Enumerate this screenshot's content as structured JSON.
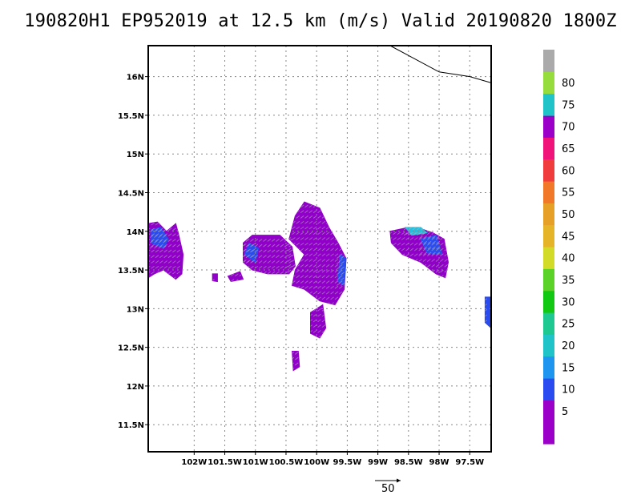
{
  "title": "190820H1 EP952019 at 12.5 km (m/s) Valid 20190820 1800Z",
  "map": {
    "lon_range": [
      -102.75,
      -97.15
    ],
    "lat_range": [
      11.15,
      16.4
    ],
    "lat_ticks": [
      {
        "value": 16.0,
        "label": "16N"
      },
      {
        "value": 15.5,
        "label": "15.5N"
      },
      {
        "value": 15.0,
        "label": "15N"
      },
      {
        "value": 14.5,
        "label": "14.5N"
      },
      {
        "value": 14.0,
        "label": "14N"
      },
      {
        "value": 13.5,
        "label": "13.5N"
      },
      {
        "value": 13.0,
        "label": "13N"
      },
      {
        "value": 12.5,
        "label": "12.5N"
      },
      {
        "value": 12.0,
        "label": "12N"
      },
      {
        "value": 11.5,
        "label": "11.5N"
      }
    ],
    "lon_ticks": [
      {
        "value": -102.0,
        "label": "102W"
      },
      {
        "value": -101.5,
        "label": "101.5W"
      },
      {
        "value": -101.0,
        "label": "101W"
      },
      {
        "value": -100.5,
        "label": "100.5W"
      },
      {
        "value": -100.0,
        "label": "100W"
      },
      {
        "value": -99.5,
        "label": "99.5W"
      },
      {
        "value": -99.0,
        "label": "99W"
      },
      {
        "value": -98.5,
        "label": "98.5W"
      },
      {
        "value": -98.0,
        "label": "98W"
      },
      {
        "value": -97.5,
        "label": "97.5W"
      }
    ],
    "gridlines": "dotted",
    "coastline": [
      [
        -98.8,
        16.4
      ],
      [
        -98.0,
        16.06
      ],
      [
        -97.5,
        16.0
      ],
      [
        -97.15,
        15.92
      ]
    ],
    "echo_regions": [
      {
        "cells": [
          [
            -102.75,
            13.4
          ],
          [
            -102.75,
            14.1
          ],
          [
            -102.6,
            14.12
          ],
          [
            -102.45,
            14.0
          ],
          [
            -102.3,
            14.1
          ],
          [
            -102.25,
            13.95
          ],
          [
            -102.18,
            13.7
          ],
          [
            -102.2,
            13.45
          ],
          [
            -102.3,
            13.38
          ],
          [
            -102.5,
            13.5
          ],
          [
            -102.65,
            13.45
          ]
        ],
        "color": "#9000c8"
      },
      {
        "cells": [
          [
            -102.7,
            13.85
          ],
          [
            -102.7,
            14.02
          ],
          [
            -102.55,
            14.05
          ],
          [
            -102.42,
            13.9
          ],
          [
            -102.5,
            13.78
          ]
        ],
        "color": "#2a4bf0"
      },
      {
        "cells": [
          [
            -101.2,
            13.85
          ],
          [
            -101.05,
            13.95
          ],
          [
            -100.6,
            13.95
          ],
          [
            -100.4,
            13.8
          ],
          [
            -100.35,
            13.55
          ],
          [
            -100.45,
            13.45
          ],
          [
            -100.8,
            13.45
          ],
          [
            -101.05,
            13.5
          ],
          [
            -101.2,
            13.6
          ]
        ],
        "color": "#9000c8"
      },
      {
        "cells": [
          [
            -101.18,
            13.7
          ],
          [
            -101.1,
            13.85
          ],
          [
            -100.95,
            13.78
          ],
          [
            -101.0,
            13.6
          ]
        ],
        "color": "#2a4bf0"
      },
      {
        "cells": [
          [
            -100.35,
            14.2
          ],
          [
            -100.2,
            14.38
          ],
          [
            -99.95,
            14.3
          ],
          [
            -99.8,
            14.05
          ],
          [
            -99.65,
            13.85
          ],
          [
            -99.52,
            13.65
          ],
          [
            -99.55,
            13.25
          ],
          [
            -99.7,
            13.05
          ],
          [
            -99.95,
            13.1
          ],
          [
            -100.2,
            13.25
          ],
          [
            -100.4,
            13.3
          ],
          [
            -100.35,
            13.5
          ],
          [
            -100.2,
            13.7
          ],
          [
            -100.45,
            13.9
          ]
        ],
        "color": "#9000c8"
      },
      {
        "cells": [
          [
            -99.62,
            13.7
          ],
          [
            -99.52,
            13.65
          ],
          [
            -99.55,
            13.3
          ],
          [
            -99.65,
            13.35
          ]
        ],
        "color": "#2a4bf0"
      },
      {
        "cells": [
          [
            -100.1,
            12.95
          ],
          [
            -99.9,
            13.05
          ],
          [
            -99.85,
            12.75
          ],
          [
            -99.95,
            12.62
          ],
          [
            -100.1,
            12.68
          ]
        ],
        "color": "#9000c8"
      },
      {
        "cells": [
          [
            -100.4,
            12.45
          ],
          [
            -100.3,
            12.45
          ],
          [
            -100.28,
            12.25
          ],
          [
            -100.38,
            12.2
          ]
        ],
        "color": "#9000c8"
      },
      {
        "cells": [
          [
            -101.45,
            13.42
          ],
          [
            -101.25,
            13.48
          ],
          [
            -101.2,
            13.38
          ],
          [
            -101.4,
            13.35
          ]
        ],
        "color": "#9000c8"
      },
      {
        "cells": [
          [
            -101.7,
            13.45
          ],
          [
            -101.62,
            13.45
          ],
          [
            -101.62,
            13.35
          ],
          [
            -101.7,
            13.36
          ]
        ],
        "color": "#9000c8"
      },
      {
        "cells": [
          [
            -98.8,
            14.0
          ],
          [
            -98.5,
            14.05
          ],
          [
            -98.25,
            14.02
          ],
          [
            -98.1,
            13.98
          ],
          [
            -97.92,
            13.9
          ],
          [
            -97.85,
            13.6
          ],
          [
            -97.9,
            13.4
          ],
          [
            -98.05,
            13.45
          ],
          [
            -98.3,
            13.6
          ],
          [
            -98.6,
            13.7
          ],
          [
            -98.78,
            13.85
          ]
        ],
        "color": "#9000c8"
      },
      {
        "cells": [
          [
            -98.55,
            14.05
          ],
          [
            -98.3,
            14.05
          ],
          [
            -98.2,
            13.98
          ],
          [
            -98.45,
            13.95
          ]
        ],
        "color": "#22c0e0"
      },
      {
        "cells": [
          [
            -98.3,
            13.9
          ],
          [
            -98.05,
            13.95
          ],
          [
            -97.95,
            13.7
          ],
          [
            -98.2,
            13.72
          ]
        ],
        "color": "#2a4bf0"
      },
      {
        "cells": [
          [
            -97.25,
            13.15
          ],
          [
            -97.15,
            13.15
          ],
          [
            -97.15,
            12.75
          ],
          [
            -97.25,
            12.82
          ]
        ],
        "color": "#2a4bf0"
      }
    ],
    "legend_arrow_label": "50"
  },
  "colorbar": {
    "levels": [
      {
        "color": "#9b00c9"
      },
      {
        "label": "5",
        "color": "#9b00c9"
      },
      {
        "label": "10",
        "color": "#2a4bf0"
      },
      {
        "label": "15",
        "color": "#1e96f0"
      },
      {
        "label": "20",
        "color": "#20c3c8"
      },
      {
        "label": "25",
        "color": "#1ec890"
      },
      {
        "label": "30",
        "color": "#12c812"
      },
      {
        "label": "35",
        "color": "#5ad228"
      },
      {
        "label": "40",
        "color": "#d2dc28"
      },
      {
        "label": "45",
        "color": "#e6b428"
      },
      {
        "label": "50",
        "color": "#e6a028"
      },
      {
        "label": "55",
        "color": "#f07828"
      },
      {
        "label": "60",
        "color": "#f03c3c"
      },
      {
        "label": "65",
        "color": "#f0147a"
      },
      {
        "label": "70",
        "color": "#9b00c9"
      },
      {
        "label": "75",
        "color": "#20c3c8"
      },
      {
        "label": "80",
        "color": "#96dc3c"
      },
      {
        "color": "#aaaaaa"
      }
    ]
  }
}
